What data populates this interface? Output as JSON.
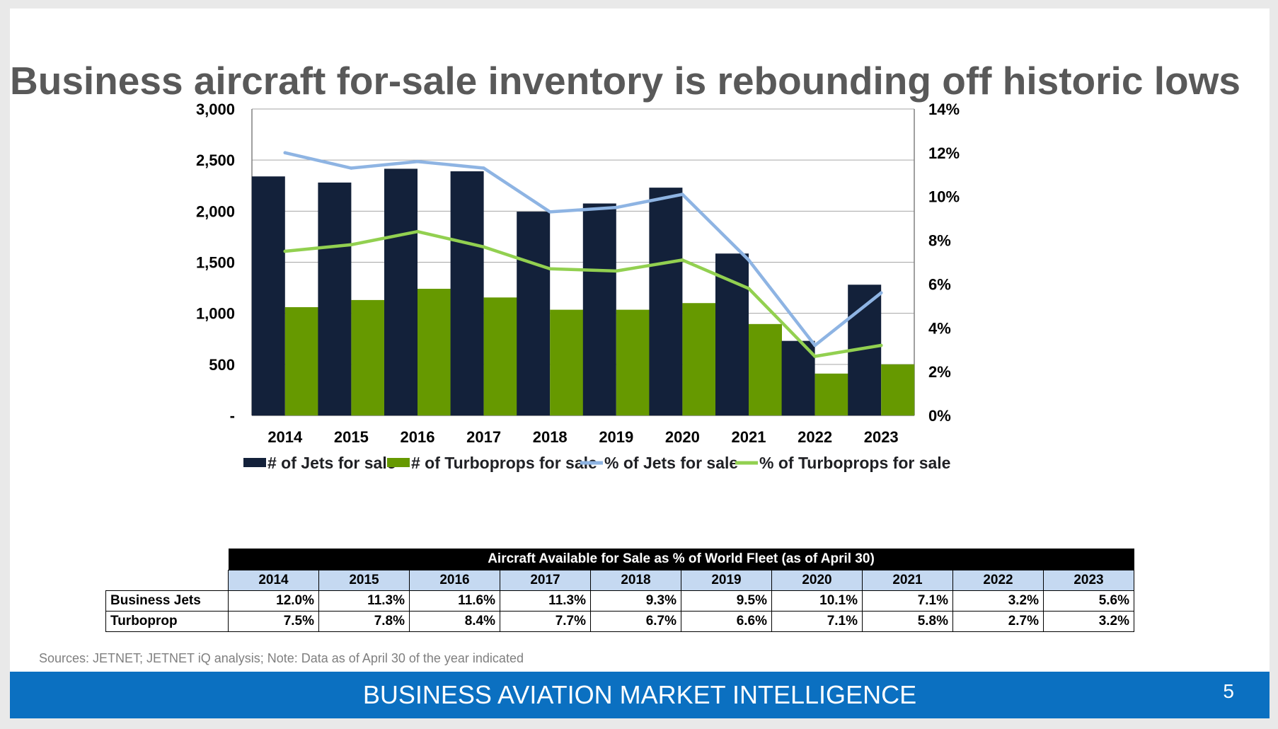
{
  "title": "Business aircraft for-sale inventory is rebounding off historic lows",
  "chart_data": {
    "type": "bar",
    "categories": [
      "2014",
      "2015",
      "2016",
      "2017",
      "2018",
      "2019",
      "2020",
      "2021",
      "2022",
      "2023"
    ],
    "series": [
      {
        "name": "# of Jets for sale",
        "kind": "bar",
        "axis": "left",
        "color": "#13213a",
        "values": [
          2340,
          2280,
          2415,
          2390,
          1995,
          2075,
          2230,
          1585,
          730,
          1280
        ]
      },
      {
        "name": "# of Turboprops for sale",
        "kind": "bar",
        "axis": "left",
        "color": "#669900",
        "values": [
          1060,
          1130,
          1240,
          1155,
          1035,
          1035,
          1100,
          895,
          410,
          500
        ]
      },
      {
        "name": "% of Jets for sale",
        "kind": "line",
        "axis": "right",
        "color": "#8eb4e3",
        "values": [
          12.0,
          11.3,
          11.6,
          11.3,
          9.3,
          9.5,
          10.1,
          7.1,
          3.2,
          5.6
        ]
      },
      {
        "name": "% of Turboprops for sale",
        "kind": "line",
        "axis": "right",
        "color": "#92d050",
        "values": [
          7.5,
          7.8,
          8.4,
          7.7,
          6.7,
          6.6,
          7.1,
          5.8,
          2.7,
          3.2
        ]
      }
    ],
    "y_left": {
      "range": [
        0,
        3000
      ],
      "ticks": [
        0,
        500,
        1000,
        1500,
        2000,
        2500,
        3000
      ],
      "tick_labels": [
        "-",
        "500",
        "1,000",
        "1,500",
        "2,000",
        "2,500",
        "3,000"
      ]
    },
    "y_right": {
      "range": [
        0,
        14
      ],
      "ticks": [
        0,
        2,
        4,
        6,
        8,
        10,
        12,
        14
      ],
      "tick_labels": [
        "0%",
        "2%",
        "4%",
        "6%",
        "8%",
        "10%",
        "12%",
        "14%"
      ]
    },
    "grid": true,
    "legend_position": "bottom"
  },
  "table": {
    "heading": "Aircraft Available for Sale as % of World Fleet (as of April 30)",
    "years": [
      "2014",
      "2015",
      "2016",
      "2017",
      "2018",
      "2019",
      "2020",
      "2021",
      "2022",
      "2023"
    ],
    "rows": [
      {
        "label": "Business Jets",
        "values": [
          "12.0%",
          "11.3%",
          "11.6%",
          "11.3%",
          "9.3%",
          "9.5%",
          "10.1%",
          "7.1%",
          "3.2%",
          "5.6%"
        ]
      },
      {
        "label": "Turboprop",
        "values": [
          "7.5%",
          "7.8%",
          "8.4%",
          "7.7%",
          "6.7%",
          "6.6%",
          "7.1%",
          "5.8%",
          "2.7%",
          "3.2%"
        ]
      }
    ]
  },
  "source": "Sources: JETNET; JETNET iQ analysis; Note: Data as of April 30 of the year indicated",
  "footer": {
    "title": "BUSINESS AVIATION MARKET INTELLIGENCE",
    "page": "5"
  }
}
